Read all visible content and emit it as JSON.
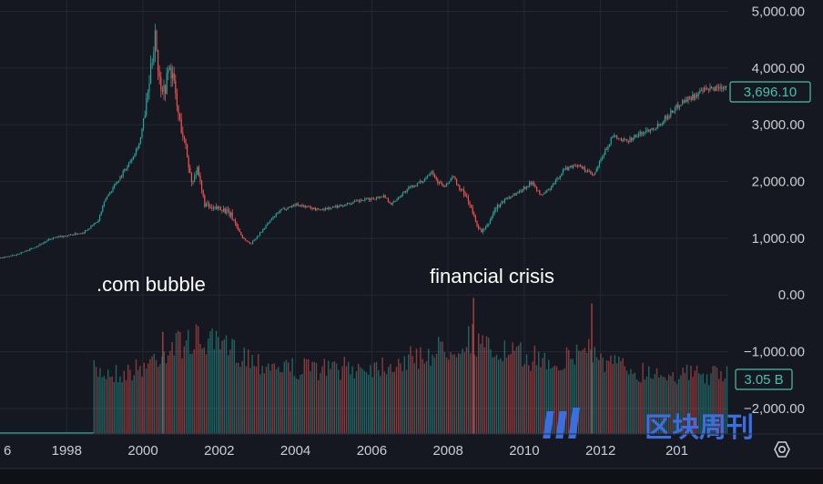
{
  "chart_data": {
    "type": "candlestick",
    "title": "",
    "xlabel": "",
    "ylabel": "",
    "price_axis": {
      "ticks": [
        "5,000.00",
        "4,000.00",
        "3,000.00",
        "2,000.00",
        "1,000.00",
        "0.00",
        "−1,000.00",
        "−2,000.00"
      ]
    },
    "x_ticks": [
      "6",
      "1998",
      "2000",
      "2002",
      "2004",
      "2006",
      "2008",
      "2010",
      "2012",
      "201"
    ],
    "ylim": [
      -2450,
      5200
    ],
    "xlim": [
      1996.25,
      2015.35
    ],
    "last_price_label": "3,696.10",
    "volume_label": "3.05 B",
    "annotations": [
      {
        "text": ".com bubble",
        "x": 2000.0,
        "y": 200
      },
      {
        "text": "financial crisis",
        "x": 2008.0,
        "y": 400
      }
    ],
    "price_path": [
      [
        1996.25,
        650
      ],
      [
        1996.6,
        700
      ],
      [
        1997.0,
        800
      ],
      [
        1997.3,
        900
      ],
      [
        1997.6,
        1000
      ],
      [
        1998.0,
        1050
      ],
      [
        1998.4,
        1100
      ],
      [
        1998.6,
        1200
      ],
      [
        1998.8,
        1300
      ],
      [
        1999.0,
        1700
      ],
      [
        1999.3,
        2000
      ],
      [
        1999.6,
        2300
      ],
      [
        1999.9,
        2700
      ],
      [
        2000.1,
        3500
      ],
      [
        2000.25,
        4300
      ],
      [
        2000.3,
        4700
      ],
      [
        2000.4,
        3800
      ],
      [
        2000.55,
        3600
      ],
      [
        2000.65,
        4000
      ],
      [
        2000.75,
        3900
      ],
      [
        2000.9,
        3200
      ],
      [
        2001.1,
        2600
      ],
      [
        2001.25,
        2000
      ],
      [
        2001.4,
        2200
      ],
      [
        2001.6,
        1600
      ],
      [
        2001.8,
        1500
      ],
      [
        2002.0,
        1550
      ],
      [
        2002.3,
        1400
      ],
      [
        2002.6,
        1000
      ],
      [
        2002.8,
        900
      ],
      [
        2003.0,
        1050
      ],
      [
        2003.3,
        1300
      ],
      [
        2003.6,
        1500
      ],
      [
        2004.0,
        1600
      ],
      [
        2004.3,
        1550
      ],
      [
        2004.6,
        1500
      ],
      [
        2005.0,
        1550
      ],
      [
        2005.3,
        1600
      ],
      [
        2005.6,
        1650
      ],
      [
        2006.0,
        1700
      ],
      [
        2006.3,
        1750
      ],
      [
        2006.5,
        1600
      ],
      [
        2006.8,
        1800
      ],
      [
        2007.0,
        1900
      ],
      [
        2007.3,
        2000
      ],
      [
        2007.55,
        2200
      ],
      [
        2007.7,
        2000
      ],
      [
        2007.9,
        1900
      ],
      [
        2008.1,
        2100
      ],
      [
        2008.3,
        1850
      ],
      [
        2008.5,
        1700
      ],
      [
        2008.7,
        1300
      ],
      [
        2008.85,
        1100
      ],
      [
        2009.0,
        1200
      ],
      [
        2009.2,
        1500
      ],
      [
        2009.5,
        1700
      ],
      [
        2009.8,
        1800
      ],
      [
        2010.2,
        2000
      ],
      [
        2010.4,
        1750
      ],
      [
        2010.7,
        1900
      ],
      [
        2011.0,
        2200
      ],
      [
        2011.3,
        2300
      ],
      [
        2011.6,
        2200
      ],
      [
        2011.8,
        2100
      ],
      [
        2012.0,
        2400
      ],
      [
        2012.3,
        2800
      ],
      [
        2012.6,
        2700
      ],
      [
        2012.9,
        2800
      ],
      [
        2013.2,
        2900
      ],
      [
        2013.5,
        3000
      ],
      [
        2013.8,
        3200
      ],
      [
        2014.1,
        3400
      ],
      [
        2014.4,
        3500
      ],
      [
        2014.7,
        3600
      ],
      [
        2015.0,
        3650
      ],
      [
        2015.3,
        3696.1
      ]
    ],
    "volume_baseline": -2450,
    "volume_start_year": 1998.7,
    "volume_envelope": [
      [
        1998.7,
        -1150
      ],
      [
        1999.5,
        -1200
      ],
      [
        2000.0,
        -1050
      ],
      [
        2000.5,
        -750
      ],
      [
        2001.0,
        -550
      ],
      [
        2001.5,
        -500
      ],
      [
        2002.0,
        -650
      ],
      [
        2002.5,
        -750
      ],
      [
        2003.0,
        -950
      ],
      [
        2004.0,
        -1100
      ],
      [
        2005.0,
        -1100
      ],
      [
        2006.0,
        -1050
      ],
      [
        2007.0,
        -900
      ],
      [
        2008.0,
        -650
      ],
      [
        2008.6,
        -450
      ],
      [
        2009.0,
        -700
      ],
      [
        2010.0,
        -850
      ],
      [
        2011.0,
        -950
      ],
      [
        2011.7,
        -600
      ],
      [
        2012.0,
        -950
      ],
      [
        2013.0,
        -1150
      ],
      [
        2014.0,
        -1200
      ],
      [
        2015.35,
        -1250
      ]
    ],
    "colors": {
      "up": "#26a69a",
      "down": "#ef5350",
      "background": "#151821",
      "grid": "#242833",
      "axis_text": "#c9ccd3",
      "badge": "#4bbfad"
    }
  },
  "watermark": {
    "text": "区块周刊",
    "logo_glyph": "∥",
    "color": "#3b6fe0"
  },
  "settings_icon": "gear-icon"
}
